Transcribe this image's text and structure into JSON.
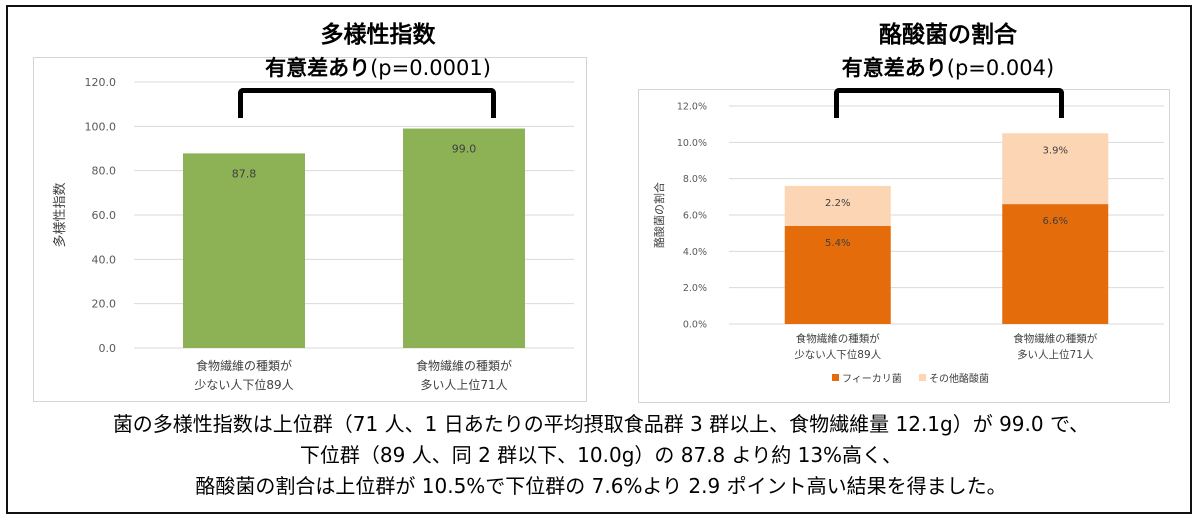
{
  "chart_data": [
    {
      "type": "bar",
      "title": "多様性指数",
      "significance": {
        "label": "有意差あり",
        "p": "(p=0.0001)"
      },
      "ylabel": "多様性指数",
      "ylim": [
        0,
        120
      ],
      "yticks": [
        "0.0",
        "20.0",
        "40.0",
        "60.0",
        "80.0",
        "100.0",
        "120.0"
      ],
      "categories": [
        [
          "食物繊維の種類が",
          "少ない人下位89人"
        ],
        [
          "食物繊維の種類が",
          "多い人上位71人"
        ]
      ],
      "values": [
        87.8,
        99.0
      ],
      "labels": [
        "87.8",
        "99.0"
      ],
      "color": "#8db255",
      "grid": true
    },
    {
      "type": "bar",
      "stacked": true,
      "title": "酪酸菌の割合",
      "significance": {
        "label": "有意差あり",
        "p": "(p=0.004)"
      },
      "ylabel": "酪酸菌の割合",
      "ylim": [
        0,
        12
      ],
      "yticks": [
        "0.0%",
        "2.0%",
        "4.0%",
        "6.0%",
        "8.0%",
        "10.0%",
        "12.0%"
      ],
      "categories": [
        [
          "食物繊維の種類が",
          "少ない人下位89人"
        ],
        [
          "食物繊維の種類が",
          "多い人上位71人"
        ]
      ],
      "series": [
        {
          "name": "フィーカリ菌",
          "values": [
            5.4,
            6.6
          ],
          "labels": [
            "5.4%",
            "6.6%"
          ],
          "color": "#e46c0a"
        },
        {
          "name": "その他酪酸菌",
          "values": [
            2.2,
            3.9
          ],
          "labels": [
            "2.2%",
            "3.9%"
          ],
          "color": "#fcd5b4"
        }
      ],
      "legend": "bottom",
      "grid": true
    }
  ],
  "caption": [
    "菌の多様性指数は上位群（71 人、1 日あたりの平均摂取食品群 3 群以上、食物繊維量 12.1g）が 99.0 で、",
    "下位群（89 人、同 2 群以下、10.0g）の 87.8 より約 13%高く、",
    "酪酸菌の割合は上位群が 10.5%で下位群の 7.6%より 2.9 ポイント高い結果を得ました。"
  ]
}
